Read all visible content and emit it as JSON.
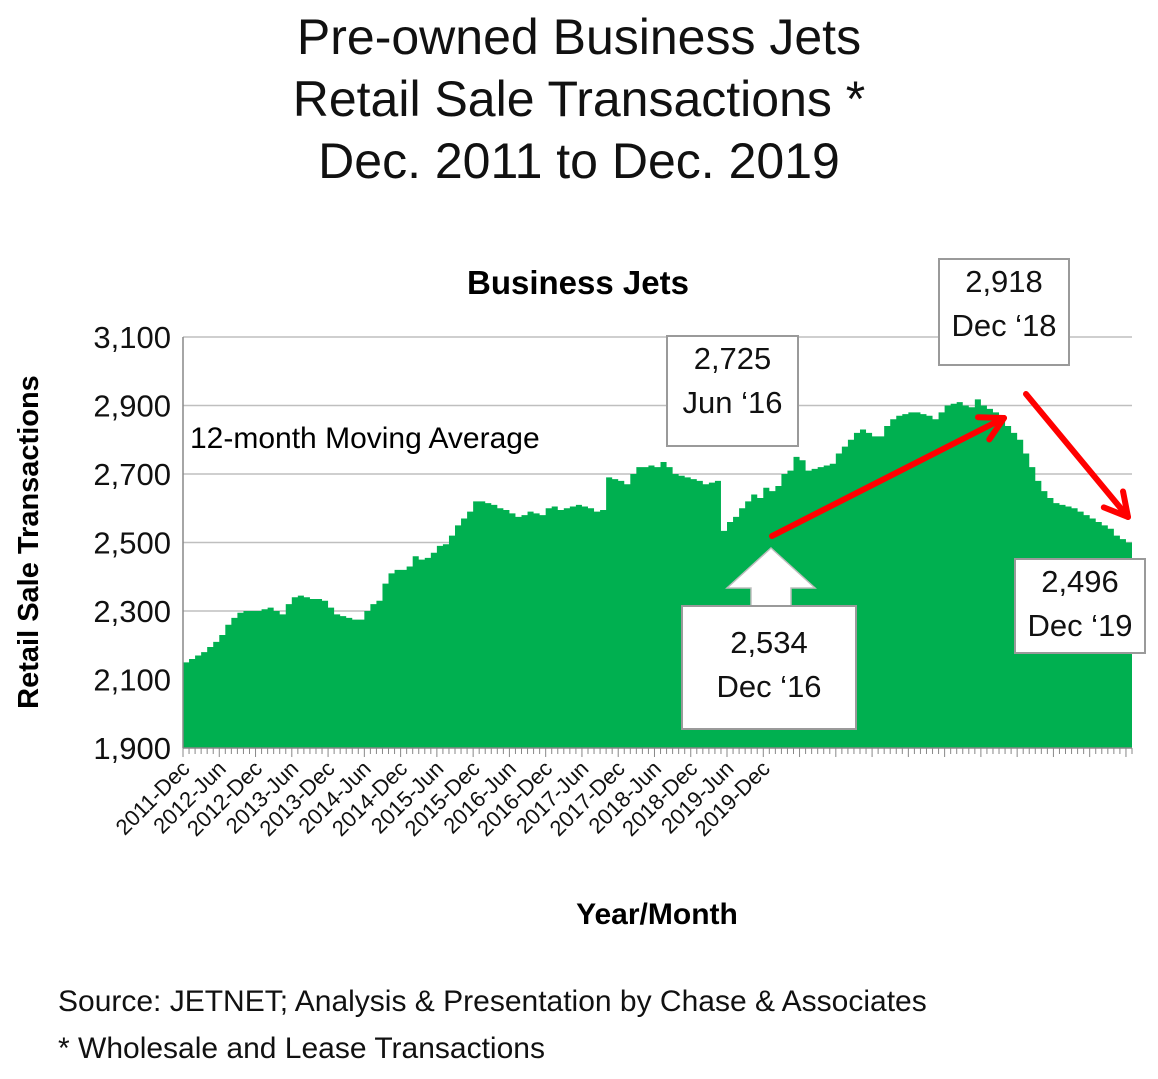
{
  "title_lines": [
    "Pre-owned Business Jets",
    "Retail Sale Transactions *",
    "Dec. 2011 to Dec. 2019"
  ],
  "colors": {
    "fill": "#00b050",
    "arrow": "#ff0000",
    "grid": "#bfbfbf"
  },
  "chart_data": {
    "type": "area",
    "title": "Business Jets",
    "xlabel": "Year/Month",
    "ylabel": "Retail Sale Transactions",
    "ylim": [
      1900,
      3100
    ],
    "yticks": [
      "1,900",
      "2,100",
      "2,300",
      "2,500",
      "2,700",
      "2,900",
      "3,100"
    ],
    "xticks": [
      "2011-Dec",
      "2012-Jun",
      "2012-Dec",
      "2013-Jun",
      "2013-Dec",
      "2014-Jun",
      "2014-Dec",
      "2015-Jun",
      "2015-Dec",
      "2016-Jun",
      "2016-Dec",
      "2017-Jun",
      "2017-Dec",
      "2018-Jun",
      "2018-Dec",
      "2019-Jun",
      "2019-Dec"
    ],
    "grid": true,
    "annotation_text": "12-month Moving Average",
    "series": [
      {
        "values": [
          2150,
          2160,
          2170,
          2180,
          2195,
          2210,
          2230,
          2260,
          2280,
          2295,
          2300,
          2300,
          2300,
          2305,
          2310,
          2300,
          2290,
          2320,
          2340,
          2345,
          2340,
          2335,
          2335,
          2330,
          2310,
          2290,
          2285,
          2280,
          2275,
          2275,
          2300,
          2320,
          2330,
          2380,
          2410,
          2420,
          2420,
          2430,
          2460,
          2450,
          2455,
          2470,
          2490,
          2495,
          2520,
          2550,
          2570,
          2590,
          2620,
          2620,
          2615,
          2610,
          2600,
          2595,
          2585,
          2575,
          2580,
          2590,
          2585,
          2580,
          2600,
          2605,
          2595,
          2600,
          2605,
          2610,
          2605,
          2600,
          2590,
          2595,
          2690,
          2685,
          2680,
          2670,
          2700,
          2720,
          2720,
          2725,
          2720,
          2735,
          2720,
          2700,
          2695,
          2690,
          2685,
          2680,
          2670,
          2675,
          2680,
          2534,
          2560,
          2575,
          2600,
          2620,
          2640,
          2630,
          2660,
          2650,
          2665,
          2700,
          2710,
          2750,
          2740,
          2710,
          2715,
          2720,
          2725,
          2730,
          2760,
          2780,
          2800,
          2820,
          2830,
          2820,
          2810,
          2810,
          2840,
          2860,
          2870,
          2875,
          2880,
          2880,
          2875,
          2870,
          2860,
          2880,
          2900,
          2905,
          2910,
          2900,
          2895,
          2918,
          2900,
          2890,
          2880,
          2860,
          2840,
          2820,
          2800,
          2760,
          2720,
          2680,
          2650,
          2630,
          2615,
          2610,
          2605,
          2600,
          2590,
          2580,
          2570,
          2560,
          2550,
          2540,
          2520,
          2510,
          2500,
          2496
        ]
      }
    ],
    "callouts": [
      {
        "name": "jun16",
        "value": "2,725",
        "label": "Jun ‘16"
      },
      {
        "name": "dec16",
        "value": "2,534",
        "label": "Dec ‘16"
      },
      {
        "name": "dec18",
        "value": "2,918",
        "label": "Dec ‘18"
      },
      {
        "name": "dec19",
        "value": "2,496",
        "label": "Dec ‘19"
      }
    ]
  },
  "footer": {
    "source": "Source: JETNET; Analysis & Presentation by Chase & Associates",
    "note": "* Wholesale and Lease Transactions"
  }
}
